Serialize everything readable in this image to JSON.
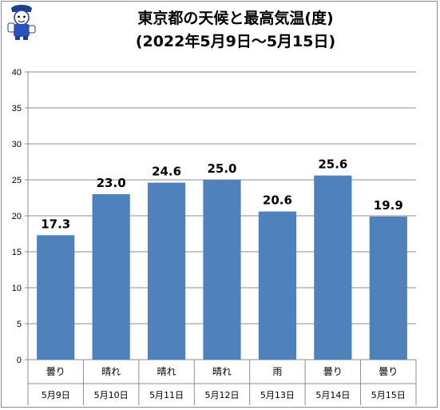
{
  "header": {
    "title_line1": "東京都の天候と最高気温(度)",
    "title_line2": "(2022年5月9日～5月15日)"
  },
  "chart_data": {
    "type": "bar",
    "title": "東京都の天候と最高気温(度) (2022年5月9日～5月15日)",
    "categories": [
      "5月9日",
      "5月10日",
      "5月11日",
      "5月12日",
      "5月13日",
      "5月14日",
      "5月15日"
    ],
    "weather": [
      "曇り",
      "晴れ",
      "晴れ",
      "晴れ",
      "雨",
      "曇り",
      "曇り"
    ],
    "values": [
      17.3,
      23.0,
      24.6,
      25.0,
      20.6,
      25.6,
      19.9
    ],
    "value_labels": [
      "17.3",
      "23.0",
      "24.6",
      "25.0",
      "20.6",
      "25.6",
      "19.9"
    ],
    "ylim": [
      0,
      40
    ],
    "y_ticks": [
      0,
      5,
      10,
      15,
      20,
      25,
      30,
      35,
      40
    ],
    "grid": true,
    "legend": "none",
    "bar_color": "#4f81bd",
    "grid_color": "#8c8c8c"
  }
}
